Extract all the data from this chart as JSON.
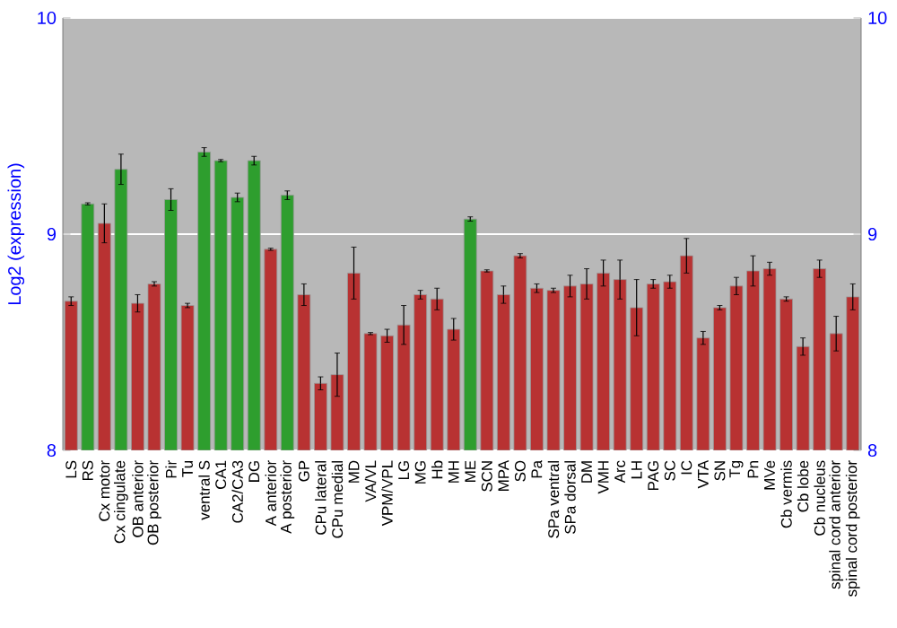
{
  "chart_data": {
    "type": "bar",
    "ylabel": "Log2 (expression)",
    "categories": [
      "LS",
      "RS",
      "Cx motor",
      "Cx cingulate",
      "OB anterior",
      "OB posterior",
      "Pir",
      "Tu",
      "ventral S",
      "CA1",
      "CA2/CA3",
      "DG",
      "A anterior",
      "A posterior",
      "GP",
      "CPu lateral",
      "CPu medial",
      "MD",
      "VA/VL",
      "VPM/VPL",
      "LG",
      "MG",
      "Hb",
      "MH",
      "ME",
      "SCN",
      "MPA",
      "SO",
      "Pa",
      "SPa ventral",
      "SPa dorsal",
      "DM",
      "VMH",
      "Arc",
      "LH",
      "PAG",
      "SC",
      "IC",
      "VTA",
      "SN",
      "Tg",
      "Pn",
      "MVe",
      "Cb vermis",
      "Cb lobe",
      "Cb nucleus",
      "spinal cord anterior",
      "spinal cord posterior"
    ],
    "values": [
      8.69,
      9.14,
      9.05,
      9.3,
      8.68,
      8.77,
      9.16,
      8.67,
      9.38,
      9.34,
      9.17,
      9.34,
      8.93,
      9.18,
      8.72,
      8.31,
      8.35,
      8.82,
      8.54,
      8.53,
      8.58,
      8.72,
      8.7,
      8.56,
      9.07,
      8.83,
      8.72,
      8.9,
      8.75,
      8.74,
      8.76,
      8.77,
      8.82,
      8.79,
      8.66,
      8.77,
      8.78,
      8.9,
      8.52,
      8.66,
      8.76,
      8.83,
      8.84,
      8.7,
      8.48,
      8.84,
      8.54,
      8.71
    ],
    "errors": [
      0.02,
      0.005,
      0.09,
      0.07,
      0.04,
      0.01,
      0.05,
      0.01,
      0.02,
      0.005,
      0.02,
      0.02,
      0.005,
      0.02,
      0.05,
      0.03,
      0.1,
      0.12,
      0.005,
      0.03,
      0.09,
      0.02,
      0.05,
      0.05,
      0.01,
      0.005,
      0.04,
      0.01,
      0.02,
      0.01,
      0.05,
      0.07,
      0.06,
      0.09,
      0.13,
      0.02,
      0.03,
      0.08,
      0.03,
      0.01,
      0.04,
      0.07,
      0.03,
      0.01,
      0.04,
      0.04,
      0.08,
      0.06
    ],
    "colors": [
      "#b83232",
      "#2e9e2e",
      "#b83232",
      "#2e9e2e",
      "#b83232",
      "#b83232",
      "#2e9e2e",
      "#b83232",
      "#2e9e2e",
      "#2e9e2e",
      "#2e9e2e",
      "#2e9e2e",
      "#b83232",
      "#2e9e2e",
      "#b83232",
      "#b83232",
      "#b83232",
      "#b83232",
      "#b83232",
      "#b83232",
      "#b83232",
      "#b83232",
      "#b83232",
      "#b83232",
      "#2e9e2e",
      "#b83232",
      "#b83232",
      "#b83232",
      "#b83232",
      "#b83232",
      "#b83232",
      "#b83232",
      "#b83232",
      "#b83232",
      "#b83232",
      "#b83232",
      "#b83232",
      "#b83232",
      "#b83232",
      "#b83232",
      "#b83232",
      "#b83232",
      "#b83232",
      "#b83232",
      "#b83232",
      "#b83232",
      "#b83232",
      "#b83232"
    ],
    "ylim": [
      8,
      10
    ],
    "yticks": [
      8,
      9,
      10
    ],
    "y2lim": [
      8,
      10
    ],
    "y2ticks": [
      8,
      9,
      10
    ],
    "grid": "y"
  }
}
